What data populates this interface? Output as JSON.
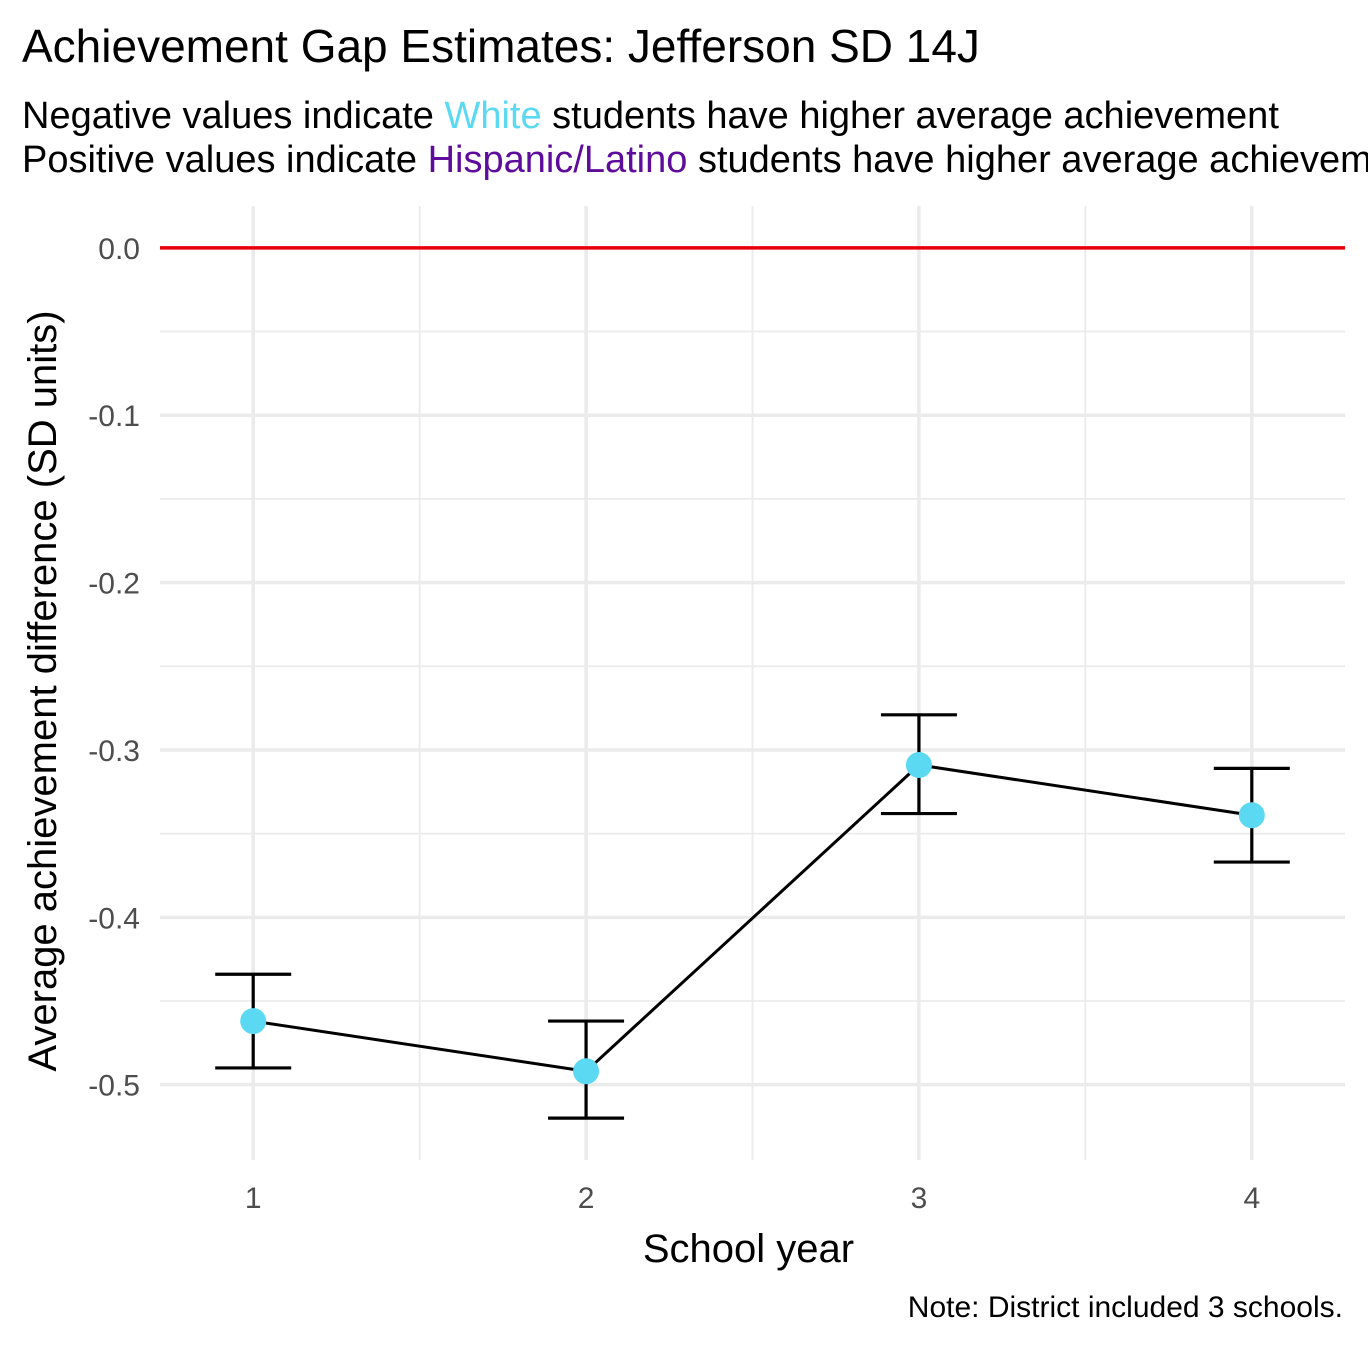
{
  "title": "Achievement Gap Estimates: Jefferson SD 14J",
  "subtitle": {
    "line1": {
      "prefix": "Negative values indicate ",
      "highlight": "White",
      "suffix": " students have higher average achievement"
    },
    "line2": {
      "prefix": "Positive values indicate ",
      "highlight": "Hispanic/Latino",
      "suffix": " students have higher average achievement"
    }
  },
  "caption": "Note: District included 3 schools.",
  "colors": {
    "white_group": "#5BD9F3",
    "hispanic_group": "#5E0C9C",
    "reference_line": "#E8000B",
    "point": "#5BD9F3",
    "line": "#000000",
    "grid": "#EBEBEB",
    "tick_text": "#4D4D4D"
  },
  "chart_data": {
    "type": "line",
    "x": [
      1,
      2,
      3,
      4
    ],
    "y": [
      -0.462,
      -0.492,
      -0.309,
      -0.339
    ],
    "error_low": [
      -0.49,
      -0.52,
      -0.338,
      -0.367
    ],
    "error_high": [
      -0.434,
      -0.462,
      -0.279,
      -0.311
    ],
    "xlabel": "School year",
    "ylabel": "Average achievement difference (SD units)",
    "xticks": [
      "1",
      "2",
      "3",
      "4"
    ],
    "yticks": [
      "0.0",
      "-0.1",
      "-0.2",
      "-0.3",
      "-0.4",
      "-0.5"
    ],
    "xlim": [
      0.72,
      4.28
    ],
    "ylim": [
      -0.545,
      0.025
    ],
    "reference_line_y": 0,
    "grid": true,
    "legend": "none"
  }
}
